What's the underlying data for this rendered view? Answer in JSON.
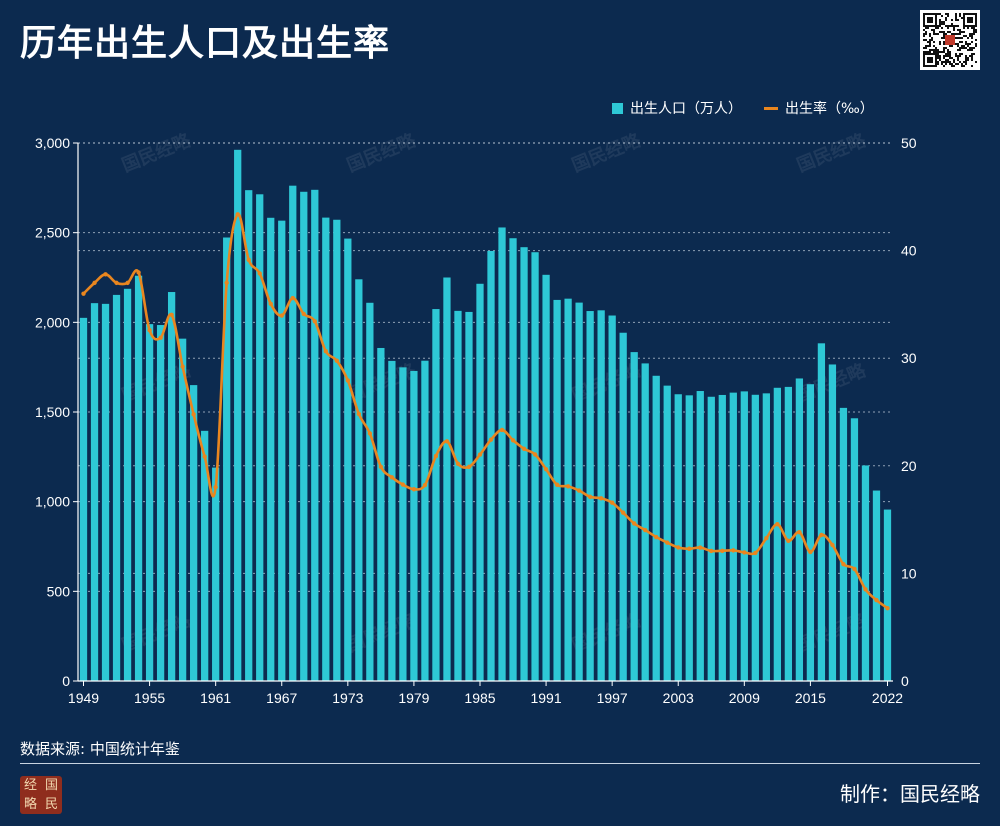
{
  "title": "历年出生人口及出生率",
  "legend": {
    "bar_label": "出生人口（万人）",
    "line_label": "出生率（‰）"
  },
  "footer": {
    "source": "数据来源: 中国统计年鉴",
    "credit": "制作：国民经略"
  },
  "watermark": "国民经略",
  "logo_chars": [
    "经",
    "国",
    "略",
    "民"
  ],
  "colors": {
    "background": "#0c2a4f",
    "bar": "#2ec8d6",
    "line": "#e9861f",
    "grid": "#c8d3e0"
  },
  "chart_data": {
    "type": "bar+line",
    "title": "历年出生人口及出生率",
    "x": [
      1949,
      1950,
      1951,
      1952,
      1953,
      1954,
      1955,
      1956,
      1957,
      1958,
      1959,
      1960,
      1961,
      1962,
      1963,
      1964,
      1965,
      1966,
      1967,
      1968,
      1969,
      1970,
      1971,
      1972,
      1973,
      1974,
      1975,
      1976,
      1977,
      1978,
      1979,
      1980,
      1981,
      1982,
      1983,
      1984,
      1985,
      1986,
      1987,
      1988,
      1989,
      1990,
      1991,
      1992,
      1993,
      1994,
      1995,
      1996,
      1997,
      1998,
      1999,
      2000,
      2001,
      2002,
      2003,
      2004,
      2005,
      2006,
      2007,
      2008,
      2009,
      2010,
      2011,
      2012,
      2013,
      2014,
      2015,
      2016,
      2017,
      2018,
      2019,
      2020,
      2021,
      2022
    ],
    "x_tick_labels": [
      "1949",
      "1955",
      "1961",
      "1967",
      "1973",
      "1979",
      "1985",
      "1991",
      "1997",
      "2003",
      "2009",
      "2015",
      "2022"
    ],
    "series": [
      {
        "name": "出生人口（万人）",
        "type": "bar",
        "axis": "left",
        "values": [
          2025,
          2107,
          2103,
          2153,
          2187,
          2260,
          1990,
          1985,
          2169,
          1909,
          1650,
          1395,
          1190,
          2473,
          2962,
          2737,
          2714,
          2583,
          2567,
          2762,
          2728,
          2739,
          2584,
          2572,
          2467,
          2240,
          2109,
          1857,
          1785,
          1749,
          1729,
          1786,
          2074,
          2250,
          2064,
          2058,
          2215,
          2398,
          2529,
          2469,
          2419,
          2391,
          2265,
          2125,
          2132,
          2110,
          2063,
          2067,
          2038,
          1942,
          1834,
          1771,
          1702,
          1647,
          1599,
          1593,
          1617,
          1585,
          1595,
          1608,
          1615,
          1596,
          1604,
          1635,
          1640,
          1687,
          1655,
          1883,
          1765,
          1523,
          1465,
          1202,
          1062,
          956
        ]
      },
      {
        "name": "出生率（‰）",
        "type": "line",
        "axis": "right",
        "values": [
          36.0,
          37.0,
          37.8,
          37.0,
          37.0,
          37.97,
          32.6,
          31.9,
          34.03,
          29.22,
          24.78,
          20.86,
          18.02,
          37.01,
          43.37,
          39.14,
          37.88,
          35.05,
          33.96,
          35.59,
          34.11,
          33.43,
          30.65,
          29.77,
          27.93,
          24.82,
          23.01,
          19.91,
          18.93,
          18.25,
          17.82,
          18.21,
          20.91,
          22.28,
          20.19,
          19.9,
          21.04,
          22.43,
          23.33,
          22.37,
          21.58,
          21.06,
          19.68,
          18.24,
          18.09,
          17.7,
          17.12,
          16.98,
          16.57,
          15.64,
          14.64,
          14.03,
          13.38,
          12.86,
          12.41,
          12.29,
          12.4,
          12.09,
          12.1,
          12.14,
          11.95,
          11.9,
          13.27,
          14.57,
          13.03,
          13.83,
          11.99,
          13.57,
          12.64,
          10.86,
          10.41,
          8.52,
          7.52,
          6.77
        ]
      }
    ],
    "y_left": {
      "min": 0,
      "max": 3000,
      "ticks": [
        0,
        500,
        1000,
        1500,
        2000,
        2500,
        3000
      ],
      "tick_labels": [
        "0",
        "500",
        "1,000",
        "1,500",
        "2,000",
        "2,500",
        "3,000"
      ]
    },
    "y_right": {
      "min": 0,
      "max": 50,
      "ticks": [
        0,
        10,
        20,
        30,
        40,
        50
      ],
      "tick_labels": [
        "0",
        "10",
        "20",
        "30",
        "40",
        "50"
      ]
    },
    "grid": true,
    "legend_position": "top-right"
  }
}
